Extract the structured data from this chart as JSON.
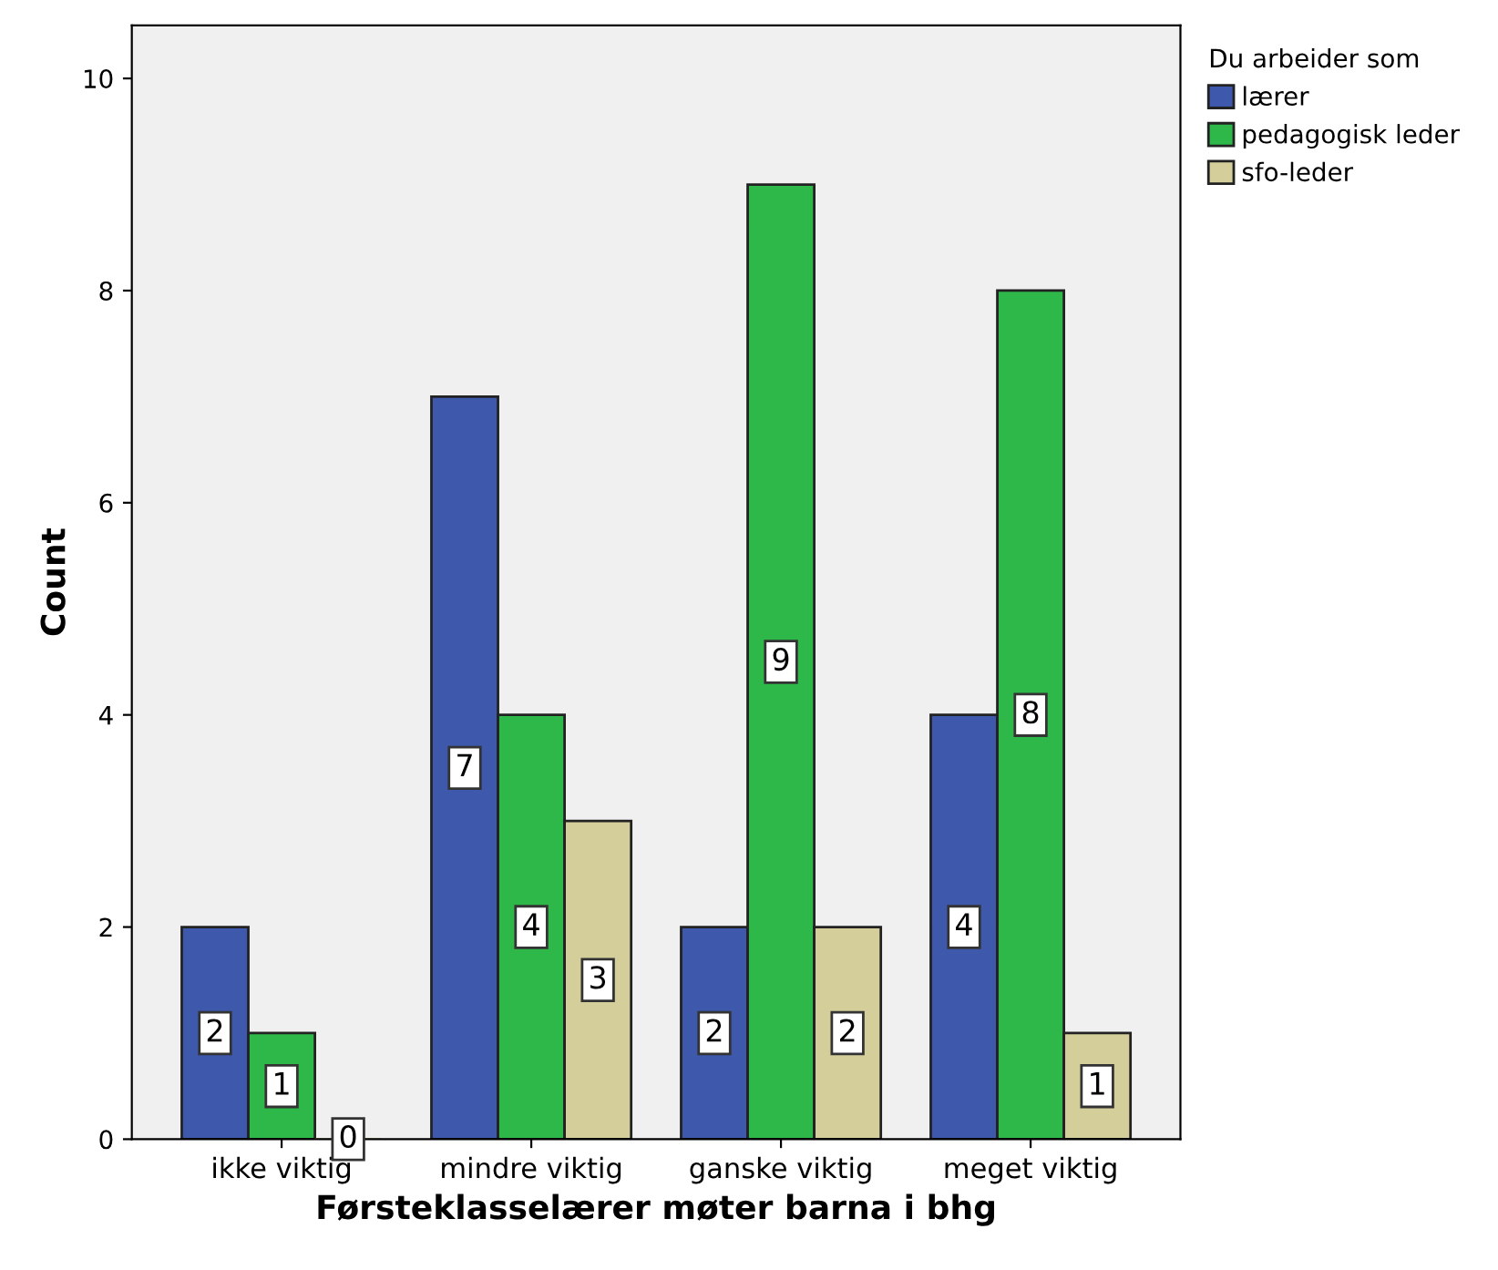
{
  "chart_data": {
    "type": "bar",
    "xlabel": "Førsteklasselærer møter barna i bhg",
    "ylabel": "Count",
    "legend_title": "Du arbeider som",
    "categories": [
      "ikke viktig",
      "mindre viktig",
      "ganske viktig",
      "meget viktig"
    ],
    "series": [
      {
        "name": "lærer",
        "color": "#3e58ac",
        "values": [
          2,
          7,
          2,
          4
        ]
      },
      {
        "name": "pedagogisk leder",
        "color": "#2fb84a",
        "values": [
          1,
          4,
          9,
          8
        ]
      },
      {
        "name": "sfo-leder",
        "color": "#d3ce9a",
        "values": [
          0,
          3,
          2,
          1
        ]
      }
    ],
    "ylim": [
      0,
      10.5
    ],
    "yticks": [
      0,
      2,
      4,
      6,
      8,
      10
    ],
    "grid": false,
    "legend": "top right",
    "data_labels": true
  }
}
